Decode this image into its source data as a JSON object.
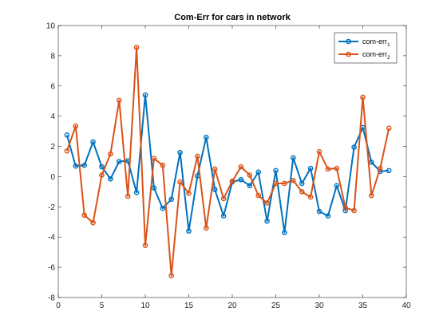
{
  "chart_data": {
    "type": "line",
    "title": "Com-Err for cars in network",
    "xlabel": "",
    "ylabel": "",
    "xlim": [
      0,
      40
    ],
    "ylim": [
      -8,
      10
    ],
    "xticks": [
      0,
      5,
      10,
      15,
      20,
      25,
      30,
      35,
      40
    ],
    "yticks": [
      -8,
      -6,
      -4,
      -2,
      0,
      2,
      4,
      6,
      8,
      10
    ],
    "grid": false,
    "legend_position": "top-right",
    "x": [
      1,
      2,
      3,
      4,
      5,
      6,
      7,
      8,
      9,
      10,
      11,
      12,
      13,
      14,
      15,
      16,
      17,
      18,
      19,
      20,
      21,
      22,
      23,
      24,
      25,
      26,
      27,
      28,
      29,
      30,
      31,
      32,
      33,
      34,
      35,
      36,
      37,
      38
    ],
    "series": [
      {
        "name": "com-err",
        "subscript": "1",
        "color": "#0072BD",
        "values": [
          2.75,
          0.7,
          0.75,
          2.3,
          0.65,
          -0.15,
          1.0,
          1.05,
          -1.05,
          5.4,
          -0.75,
          -2.1,
          -1.5,
          1.6,
          -3.6,
          0.05,
          2.6,
          -0.85,
          -2.6,
          -0.35,
          -0.2,
          -0.6,
          0.3,
          -2.95,
          0.4,
          -3.7,
          1.25,
          -0.45,
          0.55,
          -2.3,
          -2.6,
          -0.6,
          -2.25,
          1.95,
          3.25,
          0.95,
          0.35,
          0.4
        ]
      },
      {
        "name": "com-err",
        "subscript": "2",
        "color": "#D95319",
        "values": [
          1.7,
          3.35,
          -2.55,
          -3.05,
          0.1,
          1.5,
          5.05,
          -1.3,
          8.55,
          -4.55,
          1.2,
          0.75,
          -6.55,
          -0.35,
          -1.1,
          1.35,
          -3.4,
          0.5,
          -1.45,
          -0.3,
          0.65,
          0.1,
          -1.25,
          -1.75,
          -0.45,
          -0.45,
          -0.25,
          -1.0,
          -1.35,
          1.65,
          0.5,
          0.55,
          -2.05,
          -2.25,
          5.25,
          -1.25,
          0.55,
          3.2
        ]
      }
    ]
  }
}
